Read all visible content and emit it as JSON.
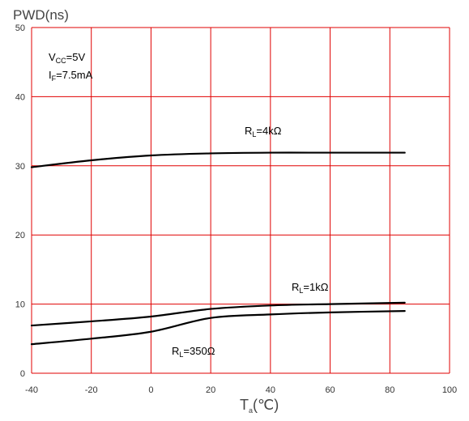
{
  "chart_data": {
    "type": "line",
    "ylabel": "PWD(ns)",
    "xlabel_main": "T",
    "xlabel_sub": "a",
    "xlabel_unit": "(℃)",
    "xlim": [
      -40,
      100
    ],
    "ylim": [
      0,
      50
    ],
    "xticks": [
      -40,
      -20,
      0,
      20,
      40,
      60,
      80,
      100
    ],
    "yticks": [
      0,
      10,
      20,
      30,
      40,
      50
    ],
    "grid": true,
    "colors": {
      "grid": "#e00000",
      "line": "#000000",
      "text": "#444444"
    },
    "conditions": [
      {
        "main": "V",
        "sub": "CC",
        "rest": "=5V"
      },
      {
        "main": "I",
        "sub": "F",
        "rest": "=7.5mA"
      }
    ],
    "series": [
      {
        "label_main": "R",
        "label_sub": "L",
        "label_rest": "=4kΩ",
        "x": [
          -40,
          -20,
          0,
          20,
          40,
          60,
          85
        ],
        "y": [
          29.8,
          30.8,
          31.5,
          31.8,
          31.9,
          31.9,
          31.9
        ]
      },
      {
        "label_main": "R",
        "label_sub": "L",
        "label_rest": "=1kΩ",
        "x": [
          -40,
          -20,
          0,
          20,
          40,
          60,
          85
        ],
        "y": [
          6.9,
          7.5,
          8.2,
          9.3,
          9.8,
          10.0,
          10.2
        ]
      },
      {
        "label_main": "R",
        "label_sub": "L",
        "label_rest": "=350Ω",
        "x": [
          -40,
          -20,
          0,
          20,
          40,
          60,
          85
        ],
        "y": [
          4.2,
          5.0,
          6.0,
          8.0,
          8.5,
          8.8,
          9.0
        ]
      }
    ]
  }
}
